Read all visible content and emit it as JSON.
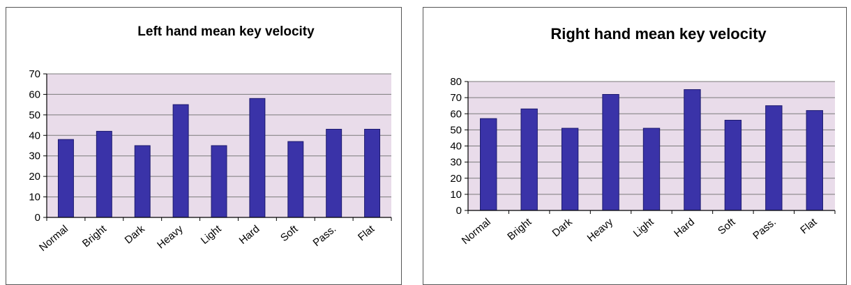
{
  "chart_data": [
    {
      "type": "bar",
      "title": "Left hand mean key velocity",
      "categories": [
        "Normal",
        "Bright",
        "Dark",
        "Heavy",
        "Light",
        "Hard",
        "Soft",
        "Pass.",
        "Flat"
      ],
      "values": [
        38,
        42,
        35,
        55,
        35,
        58,
        37,
        43,
        43
      ],
      "ylim": [
        0,
        70
      ],
      "yticks": [
        0,
        10,
        20,
        30,
        40,
        50,
        60,
        70
      ],
      "grid": true,
      "bar_color": "#3a33a8",
      "plot_background": "#e9dcea"
    },
    {
      "type": "bar",
      "title": "Right hand mean key velocity",
      "categories": [
        "Normal",
        "Bright",
        "Dark",
        "Heavy",
        "Light",
        "Hard",
        "Soft",
        "Pass.",
        "Flat"
      ],
      "values": [
        57,
        63,
        51,
        72,
        51,
        75,
        56,
        65,
        62
      ],
      "ylim": [
        0,
        80
      ],
      "yticks": [
        0,
        10,
        20,
        30,
        40,
        50,
        60,
        70,
        80
      ],
      "grid": true,
      "bar_color": "#3a33a8",
      "plot_background": "#e9dcea"
    }
  ]
}
